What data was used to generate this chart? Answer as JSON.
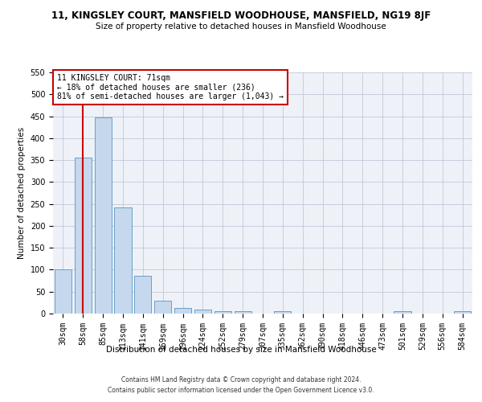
{
  "title": "11, KINGSLEY COURT, MANSFIELD WOODHOUSE, MANSFIELD, NG19 8JF",
  "subtitle": "Size of property relative to detached houses in Mansfield Woodhouse",
  "xlabel": "Distribution of detached houses by size in Mansfield Woodhouse",
  "ylabel": "Number of detached properties",
  "footer_line1": "Contains HM Land Registry data © Crown copyright and database right 2024.",
  "footer_line2": "Contains public sector information licensed under the Open Government Licence v3.0.",
  "annotation_title": "11 KINGSLEY COURT: 71sqm",
  "annotation_line1": "← 18% of detached houses are smaller (236)",
  "annotation_line2": "81% of semi-detached houses are larger (1,043) →",
  "categories": [
    "30sqm",
    "58sqm",
    "85sqm",
    "113sqm",
    "141sqm",
    "169sqm",
    "196sqm",
    "224sqm",
    "252sqm",
    "279sqm",
    "307sqm",
    "335sqm",
    "362sqm",
    "390sqm",
    "418sqm",
    "446sqm",
    "473sqm",
    "501sqm",
    "529sqm",
    "556sqm",
    "584sqm"
  ],
  "bin_vals": [
    30,
    58,
    85,
    113,
    141,
    169,
    196,
    224,
    252,
    279,
    307,
    335,
    362,
    390,
    418,
    446,
    473,
    501,
    529,
    556,
    584
  ],
  "values": [
    100,
    355,
    448,
    242,
    87,
    30,
    13,
    9,
    5,
    5,
    0,
    5,
    0,
    0,
    0,
    0,
    0,
    5,
    0,
    0,
    5
  ],
  "bar_color": "#c5d8ed",
  "bar_edge_color": "#6b9fc8",
  "vline_color": "#cc0000",
  "vline_x": 71,
  "grid_color": "#c0c8d8",
  "background_color": "#eef2f8",
  "annotation_box_color": "#cc0000",
  "ylim": [
    0,
    550
  ],
  "yticks": [
    0,
    50,
    100,
    150,
    200,
    250,
    300,
    350,
    400,
    450,
    500,
    550
  ],
  "title_fontsize": 8.5,
  "subtitle_fontsize": 7.5,
  "xlabel_fontsize": 7.5,
  "ylabel_fontsize": 7.5,
  "tick_fontsize": 7,
  "annotation_fontsize": 7,
  "footer_fontsize": 5.5
}
